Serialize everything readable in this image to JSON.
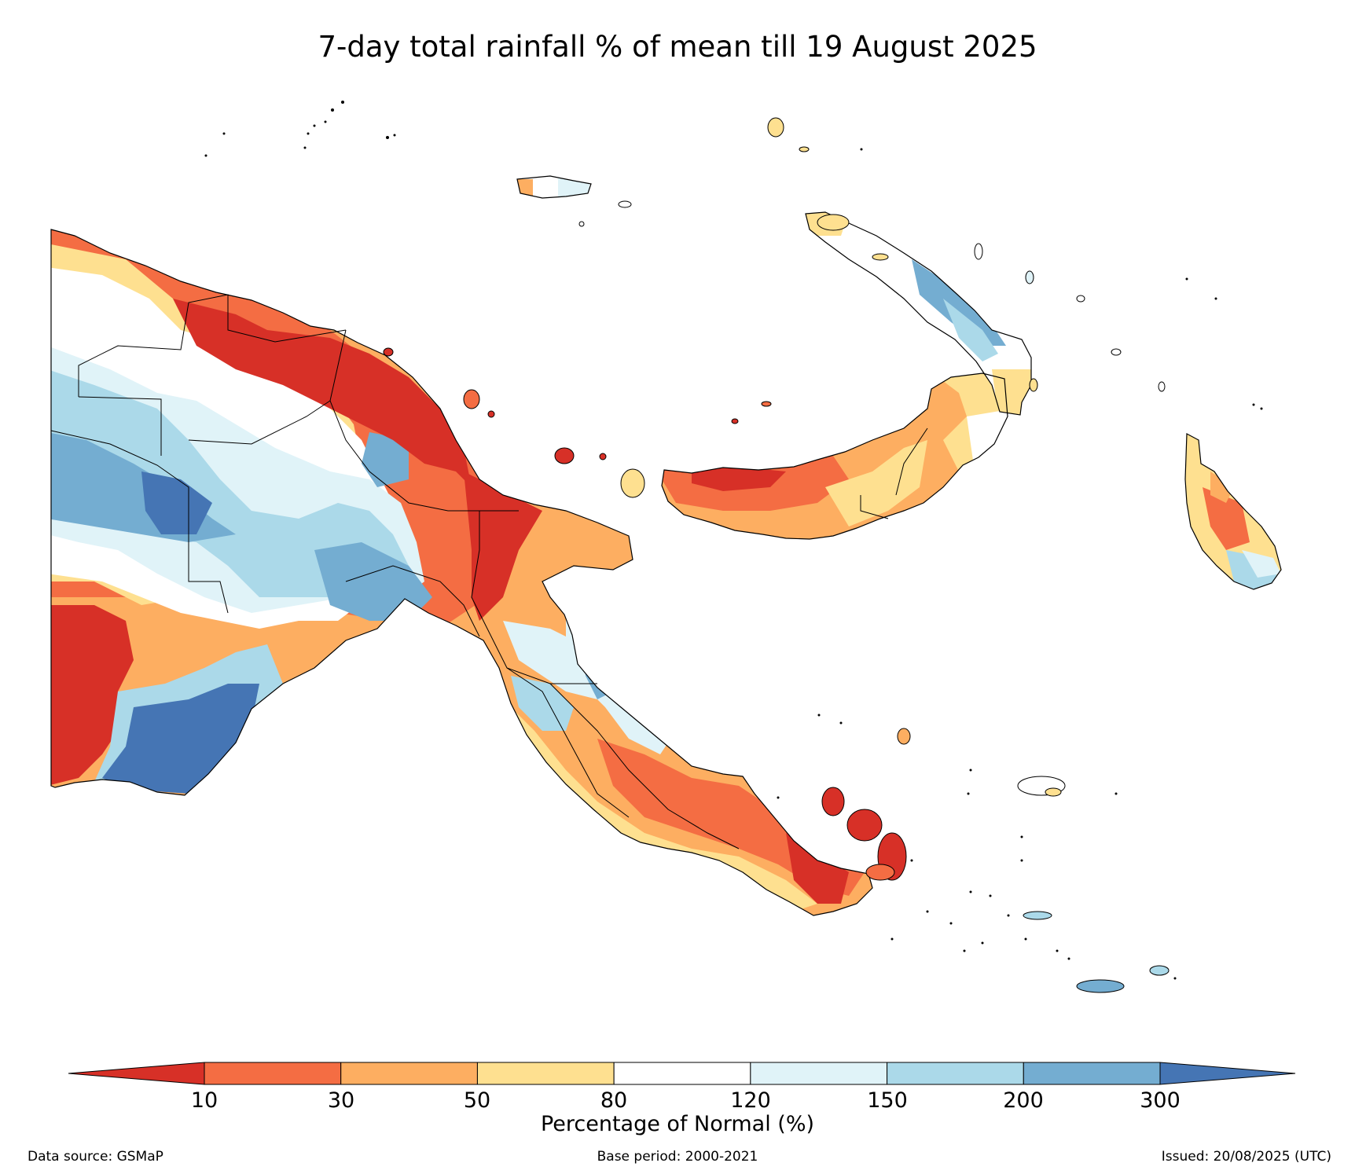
{
  "title": "7-day total rainfall % of mean till 19 August 2025",
  "colorbar": {
    "label": "Percentage of Normal (%)",
    "ticks": [
      "10",
      "30",
      "50",
      "80",
      "120",
      "150",
      "200",
      "300"
    ],
    "colors": [
      "#d73027",
      "#f46d43",
      "#fdae61",
      "#fee090",
      "#ffffff",
      "#e0f3f8",
      "#abd9e9",
      "#74add1",
      "#4575b4"
    ],
    "extend": "both"
  },
  "footer": {
    "source": "Data source: GSMaP",
    "base_period": "Base period: 2000-2021",
    "issued": "Issued: 20/08/2025 (UTC)"
  }
}
